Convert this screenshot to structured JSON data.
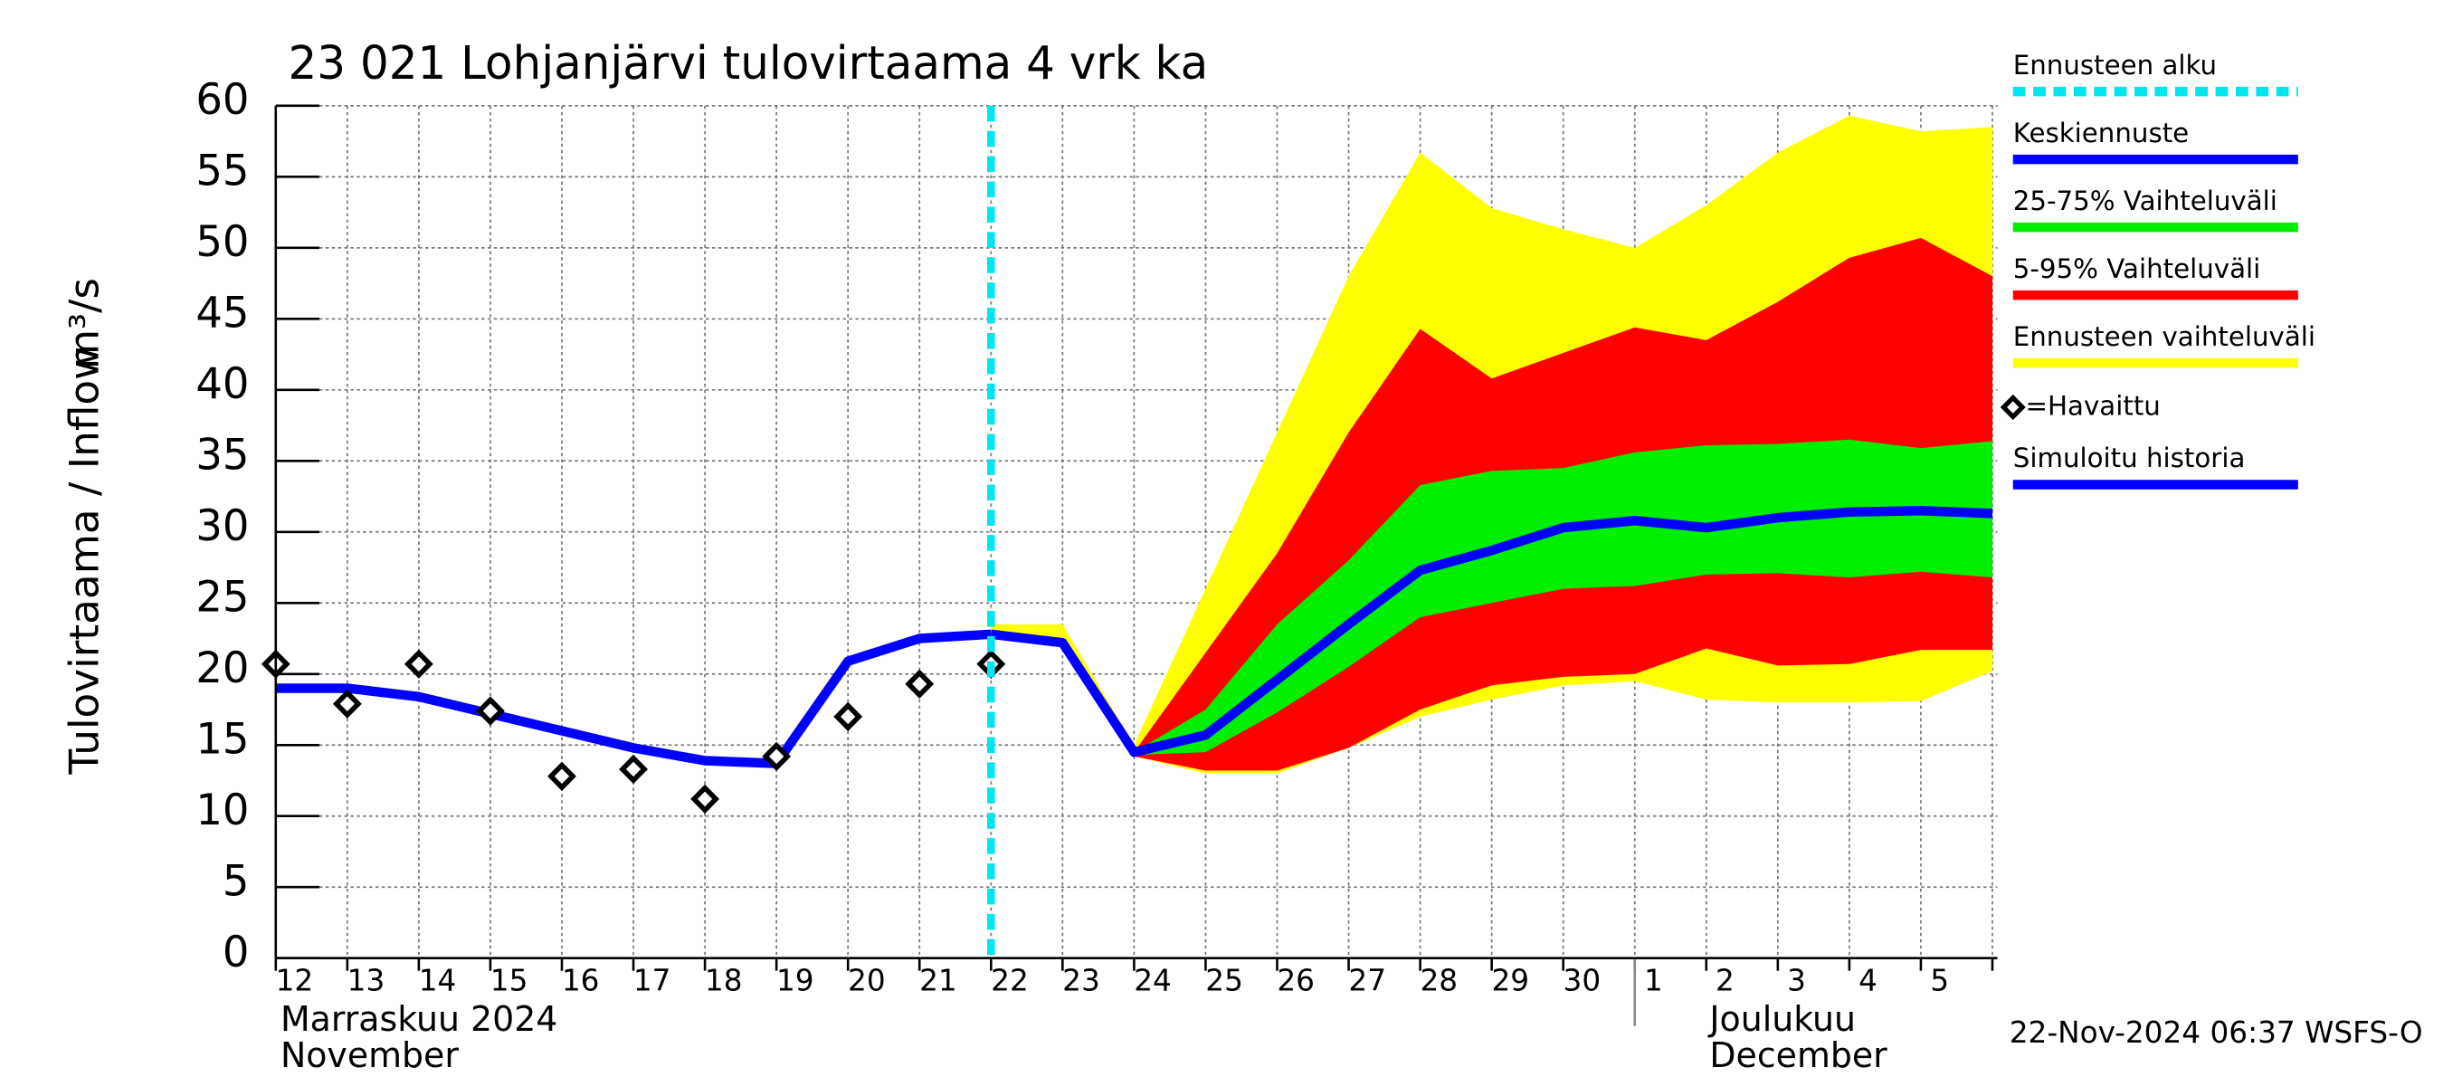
{
  "chart_data": {
    "type": "hydrograph",
    "title": "23 021 Lohjanjärvi tulovirtaama 4 vrk ka",
    "ylabel": "Tulovirtaama / Inflow",
    "yunit": "m³/s",
    "timestamp": "22-Nov-2024 06:37 WSFS-O",
    "categories": [
      "12",
      "13",
      "14",
      "15",
      "16",
      "17",
      "18",
      "19",
      "20",
      "21",
      "22",
      "23",
      "24",
      "25",
      "26",
      "27",
      "28",
      "29",
      "30",
      "1",
      "2",
      "3",
      "4",
      "5",
      null
    ],
    "months": [
      {
        "name": "Marraskuu 2024",
        "name_en": "November",
        "start": 0
      },
      {
        "name": "Joulukuu",
        "name_en": "December",
        "start": 19
      }
    ],
    "ylim": [
      0,
      60
    ],
    "yticks": [
      0,
      5,
      10,
      15,
      20,
      25,
      30,
      35,
      40,
      45,
      50,
      55,
      60
    ],
    "grid": true,
    "forecast_start": {
      "name": "Ennusteen alku",
      "color": "#00e5ee",
      "index": 10
    },
    "bands": [
      {
        "name": "Ennusteen vaihteluväli",
        "color": "#ffff00",
        "high": [
          null,
          null,
          null,
          null,
          null,
          null,
          null,
          null,
          null,
          null,
          23.5,
          23.5,
          15,
          26,
          37,
          48,
          56.7,
          52.8,
          51.3,
          50,
          53,
          56.7,
          59.3,
          58.2,
          58.5
        ],
        "low": [
          null,
          null,
          null,
          null,
          null,
          null,
          null,
          null,
          null,
          null,
          22.8,
          22,
          14.2,
          13,
          13,
          14.8,
          17,
          18.2,
          19.2,
          19.5,
          18.2,
          18,
          18,
          18.1,
          20.2
        ]
      },
      {
        "name": "5-95% Vaihteluväli",
        "color": "#ff0000",
        "high": [
          null,
          null,
          null,
          null,
          null,
          null,
          null,
          null,
          null,
          null,
          22.8,
          22.3,
          14.5,
          21.5,
          28.5,
          37,
          44.3,
          40.8,
          42.6,
          44.4,
          43.5,
          46.2,
          49.3,
          50.7,
          48
        ],
        "low": [
          null,
          null,
          null,
          null,
          null,
          null,
          null,
          null,
          null,
          null,
          22.7,
          21.9,
          14.2,
          13.2,
          13.2,
          14.8,
          17.5,
          19.2,
          19.8,
          20,
          21.8,
          20.6,
          20.7,
          21.7,
          21.7
        ]
      },
      {
        "name": "25-75% Vaihteluväli",
        "color": "#00ee00",
        "high": [
          null,
          null,
          null,
          null,
          null,
          null,
          null,
          null,
          null,
          null,
          22.8,
          22.2,
          14.5,
          17.5,
          23.5,
          28,
          33.3,
          34.3,
          34.5,
          35.6,
          36.1,
          36.2,
          36.5,
          35.9,
          36.4
        ],
        "low": [
          null,
          null,
          null,
          null,
          null,
          null,
          null,
          null,
          null,
          null,
          22.7,
          22.1,
          14.3,
          14.5,
          17.3,
          20.5,
          24,
          25,
          26,
          26.2,
          27,
          27.1,
          26.8,
          27.2,
          26.8
        ]
      }
    ],
    "series": [
      {
        "name": "Keskiennuste",
        "color": "#0000ff",
        "values": [
          null,
          null,
          null,
          null,
          null,
          null,
          null,
          null,
          null,
          null,
          22.8,
          22.2,
          14.5,
          15.7,
          19.6,
          23.5,
          27.3,
          28.7,
          30.3,
          30.8,
          30.3,
          31,
          31.4,
          31.5,
          31.3
        ]
      },
      {
        "name": "Simuloitu historia",
        "color": "#0000ff",
        "values": [
          19,
          19,
          18.4,
          17.2,
          16,
          14.8,
          13.9,
          13.7,
          20.9,
          22.5,
          22.8,
          null,
          null,
          null,
          null,
          null,
          null,
          null,
          null,
          null,
          null,
          null,
          null,
          null,
          null
        ]
      },
      {
        "name": "=Havaittu",
        "color": "#000000",
        "values": [
          20.7,
          17.9,
          20.7,
          17.4,
          12.8,
          13.3,
          11.2,
          14.2,
          17,
          19.3,
          20.7,
          null,
          null,
          null,
          null,
          null,
          null,
          null,
          null,
          null,
          null,
          null,
          null,
          null,
          null
        ]
      }
    ]
  }
}
